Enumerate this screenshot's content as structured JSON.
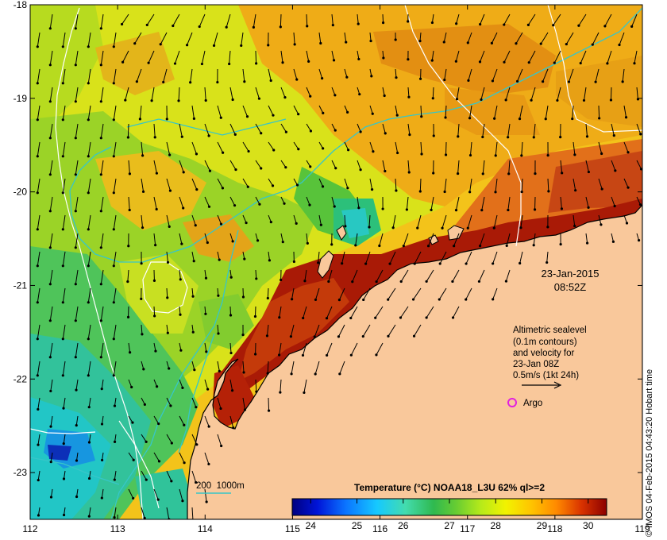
{
  "map": {
    "date": "23-Jan-2015",
    "time": "08:52Z",
    "longitudes": [
      "112",
      "113",
      "114",
      "115",
      "116",
      "117",
      "118",
      "119"
    ],
    "latitudes": [
      "-18",
      "-19",
      "-20",
      "-21",
      "-22",
      "-23"
    ],
    "lon_range": [
      112,
      119
    ],
    "lat_range": [
      -23.5,
      -18
    ],
    "land_color": "#f9c89b",
    "contour_color": "#ffffff",
    "isobath_color": "#37c6c8",
    "vector_color": "#000000",
    "argo_color": "#e020e0"
  },
  "legend": {
    "altimetry_lines": [
      "Altimetric sealevel",
      "(0.1m contours)",
      "and velocity for",
      "23-Jan 08Z",
      "0.5m/s (1kt 24h)"
    ],
    "argo_label": "Argo",
    "isobath_label": "200  1000m"
  },
  "colorbar": {
    "title": "Temperature (°C) NOAA18_L3U 62% ql>=2",
    "ticks": [
      "24",
      "25",
      "26",
      "27",
      "28",
      "29",
      "30"
    ],
    "value_range": [
      23.6,
      30.4
    ],
    "stops": [
      "#00007f",
      "#0014d8",
      "#0b74ff",
      "#16c9ff",
      "#43dcae",
      "#2fb94f",
      "#66cc33",
      "#b6ea1a",
      "#f2f200",
      "#ffc400",
      "#ff8a00",
      "#d93300",
      "#8c0000"
    ]
  },
  "credit": "© IMOS 04-Feb-2015 04:43:20 Hobart time"
}
